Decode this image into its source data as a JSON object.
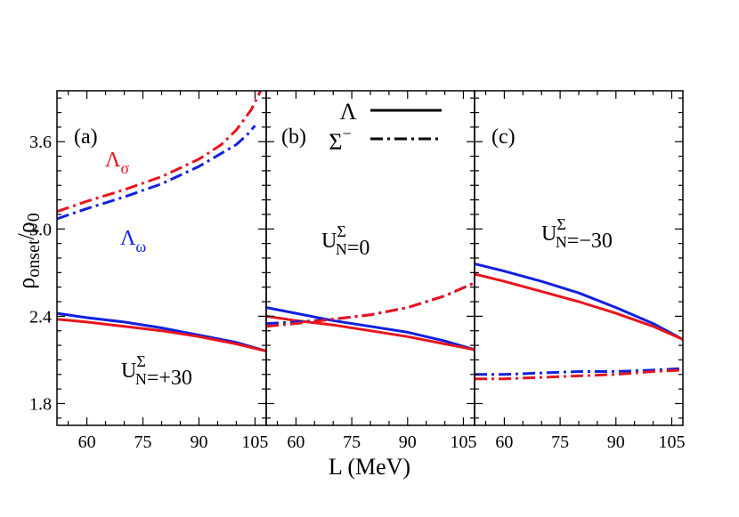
{
  "ylabel": {
    "main": "ρ",
    "sub1": "onset",
    "slash": "/ρ",
    "sub2": "0"
  },
  "xlabel": "L (MeV)",
  "colors": {
    "red": "#e8141c",
    "blue": "#1020e0",
    "axis": "#000000"
  },
  "legend": {
    "lambda": {
      "label": "Λ",
      "style": "solid"
    },
    "sigma": {
      "label": "Σ",
      "sup": "−",
      "style": "dash-dot"
    }
  },
  "chart_data": [
    {
      "type": "line",
      "panel_label": "(a)",
      "xlim": [
        52,
        108
      ],
      "ylim": [
        1.65,
        3.95
      ],
      "xticks": [
        60,
        75,
        90,
        105
      ],
      "yticks": [
        1.8,
        2.4,
        3.0,
        3.6
      ],
      "annotations": [
        {
          "key": "lambda_sigma",
          "base": "Λ",
          "sub": "σ",
          "color": "red"
        },
        {
          "key": "lambda_omega",
          "base": "Λ",
          "sub": "ω",
          "color": "blue"
        },
        {
          "key": "potential",
          "base": "U",
          "sup": "Σ",
          "sub": "N",
          "tail": "=+30",
          "color": "black"
        }
      ],
      "series": [
        {
          "color": "red",
          "style": "dash-dot",
          "x": [
            52,
            60,
            70,
            80,
            90,
            96,
            100,
            104,
            106.5
          ],
          "y": [
            3.12,
            3.19,
            3.27,
            3.36,
            3.48,
            3.58,
            3.68,
            3.82,
            3.95
          ]
        },
        {
          "color": "blue",
          "style": "dash-dot",
          "x": [
            52,
            60,
            70,
            80,
            90,
            96,
            100,
            103,
            105
          ],
          "y": [
            3.07,
            3.14,
            3.22,
            3.31,
            3.43,
            3.52,
            3.58,
            3.65,
            3.71
          ]
        },
        {
          "color": "blue",
          "style": "solid",
          "x": [
            52,
            60,
            70,
            80,
            90,
            100,
            108
          ],
          "y": [
            2.42,
            2.39,
            2.36,
            2.32,
            2.27,
            2.22,
            2.16
          ]
        },
        {
          "color": "red",
          "style": "solid",
          "x": [
            52,
            60,
            70,
            80,
            90,
            100,
            108
          ],
          "y": [
            2.38,
            2.36,
            2.33,
            2.3,
            2.26,
            2.21,
            2.16
          ]
        }
      ]
    },
    {
      "type": "line",
      "panel_label": "(b)",
      "xlim": [
        52,
        108
      ],
      "ylim": [
        1.65,
        3.95
      ],
      "xticks": [
        60,
        75,
        90,
        105
      ],
      "yticks": [
        1.8,
        2.4,
        3.0,
        3.6
      ],
      "annotations": [
        {
          "key": "potential",
          "base": "U",
          "sup": "Σ",
          "sub": "N",
          "tail": "=0",
          "color": "black"
        }
      ],
      "series": [
        {
          "color": "blue",
          "style": "solid",
          "x": [
            52,
            60,
            70,
            80,
            90,
            100,
            108
          ],
          "y": [
            2.46,
            2.42,
            2.37,
            2.33,
            2.29,
            2.23,
            2.17
          ]
        },
        {
          "color": "red",
          "style": "solid",
          "x": [
            52,
            60,
            70,
            80,
            90,
            100,
            108
          ],
          "y": [
            2.4,
            2.37,
            2.34,
            2.3,
            2.26,
            2.21,
            2.17
          ]
        },
        {
          "color": "blue",
          "style": "dash-dot",
          "x": [
            52,
            60,
            70,
            80,
            90,
            100,
            108
          ],
          "y": [
            2.35,
            2.36,
            2.38,
            2.41,
            2.46,
            2.54,
            2.63
          ]
        },
        {
          "color": "red",
          "style": "dash-dot",
          "x": [
            52,
            60,
            70,
            80,
            90,
            100,
            108
          ],
          "y": [
            2.33,
            2.35,
            2.38,
            2.41,
            2.46,
            2.54,
            2.63
          ]
        }
      ]
    },
    {
      "type": "line",
      "panel_label": "(c)",
      "xlim": [
        52,
        108
      ],
      "ylim": [
        1.65,
        3.95
      ],
      "xticks": [
        60,
        75,
        90,
        105
      ],
      "yticks": [
        1.8,
        2.4,
        3.0,
        3.6
      ],
      "annotations": [
        {
          "key": "potential",
          "base": "U",
          "sup": "Σ",
          "sub": "N",
          "tail": "=−30",
          "color": "black"
        }
      ],
      "series": [
        {
          "color": "blue",
          "style": "solid",
          "x": [
            52,
            60,
            70,
            80,
            90,
            100,
            108
          ],
          "y": [
            2.76,
            2.71,
            2.64,
            2.56,
            2.46,
            2.35,
            2.24
          ]
        },
        {
          "color": "red",
          "style": "solid",
          "x": [
            52,
            60,
            70,
            80,
            90,
            100,
            108
          ],
          "y": [
            2.69,
            2.64,
            2.57,
            2.5,
            2.42,
            2.33,
            2.24
          ]
        },
        {
          "color": "blue",
          "style": "dash-dot",
          "x": [
            52,
            60,
            70,
            80,
            90,
            100,
            108
          ],
          "y": [
            2.0,
            2.0,
            2.01,
            2.02,
            2.02,
            2.03,
            2.04
          ]
        },
        {
          "color": "red",
          "style": "dash-dot",
          "x": [
            52,
            60,
            70,
            80,
            90,
            100,
            108
          ],
          "y": [
            1.97,
            1.97,
            1.98,
            1.99,
            2.0,
            2.02,
            2.03
          ]
        }
      ]
    }
  ]
}
